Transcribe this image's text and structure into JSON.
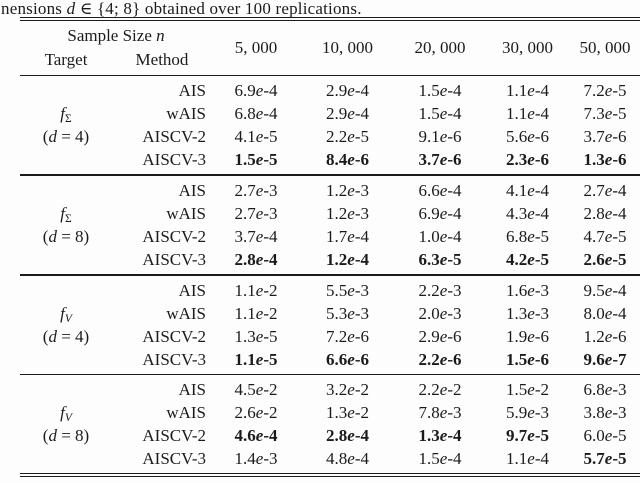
{
  "caption": {
    "parts": [
      {
        "t": "nensions "
      },
      {
        "t": "d",
        "i": true
      },
      {
        "t": " ∈ {4; 8} obtained over 100 replications."
      }
    ]
  },
  "table": {
    "header": {
      "group_title_parts": [
        {
          "t": "Sample Size "
        },
        {
          "t": "n",
          "i": true
        }
      ],
      "target_label": "Target",
      "method_label": "Method",
      "sizes": [
        "5, 000",
        "10, 000",
        "20, 000",
        "30, 000",
        "50, 000"
      ]
    },
    "groups": [
      {
        "target": {
          "symbol": "f",
          "subscript": "Σ",
          "dim_var": "d",
          "dim_value": "4"
        },
        "rows": [
          {
            "method": "AIS",
            "values": [
              "6.9e-4",
              "2.9e-4",
              "1.5e-4",
              "1.1e-4",
              "7.2e-5"
            ],
            "bold": [
              false,
              false,
              false,
              false,
              false
            ]
          },
          {
            "method": "wAIS",
            "values": [
              "6.8e-4",
              "2.9e-4",
              "1.5e-4",
              "1.1e-4",
              "7.3e-5"
            ],
            "bold": [
              false,
              false,
              false,
              false,
              false
            ]
          },
          {
            "method": "AISCV-2",
            "values": [
              "4.1e-5",
              "2.2e-5",
              "9.1e-6",
              "5.6e-6",
              "3.7e-6"
            ],
            "bold": [
              false,
              false,
              false,
              false,
              false
            ]
          },
          {
            "method": "AISCV-3",
            "values": [
              "1.5e-5",
              "8.4e-6",
              "3.7e-6",
              "2.3e-6",
              "1.3e-6"
            ],
            "bold": [
              true,
              true,
              true,
              true,
              true
            ]
          }
        ]
      },
      {
        "target": {
          "symbol": "f",
          "subscript": "Σ",
          "dim_var": "d",
          "dim_value": "8"
        },
        "rows": [
          {
            "method": "AIS",
            "values": [
              "2.7e-3",
              "1.2e-3",
              "6.6e-4",
              "4.1e-4",
              "2.7e-4"
            ],
            "bold": [
              false,
              false,
              false,
              false,
              false
            ]
          },
          {
            "method": "wAIS",
            "values": [
              "2.7e-3",
              "1.2e-3",
              "6.9e-4",
              "4.3e-4",
              "2.8e-4"
            ],
            "bold": [
              false,
              false,
              false,
              false,
              false
            ]
          },
          {
            "method": "AISCV-2",
            "values": [
              "3.7e-4",
              "1.7e-4",
              "1.0e-4",
              "6.8e-5",
              "4.7e-5"
            ],
            "bold": [
              false,
              false,
              false,
              false,
              false
            ]
          },
          {
            "method": "AISCV-3",
            "values": [
              "2.8e-4",
              "1.2e-4",
              "6.3e-5",
              "4.2e-5",
              "2.6e-5"
            ],
            "bold": [
              true,
              true,
              true,
              true,
              true
            ]
          }
        ]
      },
      {
        "target": {
          "symbol": "f",
          "subscript": "V",
          "dim_var": "d",
          "dim_value": "4"
        },
        "rows": [
          {
            "method": "AIS",
            "values": [
              "1.1e-2",
              "5.5e-3",
              "2.2e-3",
              "1.6e-3",
              "9.5e-4"
            ],
            "bold": [
              false,
              false,
              false,
              false,
              false
            ]
          },
          {
            "method": "wAIS",
            "values": [
              "1.1e-2",
              "5.3e-3",
              "2.0e-3",
              "1.3e-3",
              "8.0e-4"
            ],
            "bold": [
              false,
              false,
              false,
              false,
              false
            ]
          },
          {
            "method": "AISCV-2",
            "values": [
              "1.3e-5",
              "7.2e-6",
              "2.9e-6",
              "1.9e-6",
              "1.2e-6"
            ],
            "bold": [
              false,
              false,
              false,
              false,
              false
            ]
          },
          {
            "method": "AISCV-3",
            "values": [
              "1.1e-5",
              "6.6e-6",
              "2.2e-6",
              "1.5e-6",
              "9.6e-7"
            ],
            "bold": [
              true,
              true,
              true,
              true,
              true
            ]
          }
        ]
      },
      {
        "target": {
          "symbol": "f",
          "subscript": "V",
          "dim_var": "d",
          "dim_value": "8"
        },
        "rows": [
          {
            "method": "AIS",
            "values": [
              "4.5e-2",
              "3.2e-2",
              "2.2e-2",
              "1.5e-2",
              "6.8e-3"
            ],
            "bold": [
              false,
              false,
              false,
              false,
              false
            ]
          },
          {
            "method": "wAIS",
            "values": [
              "2.6e-2",
              "1.3e-2",
              "7.8e-3",
              "5.9e-3",
              "3.8e-3"
            ],
            "bold": [
              false,
              false,
              false,
              false,
              false
            ]
          },
          {
            "method": "AISCV-2",
            "values": [
              "4.6e-4",
              "2.8e-4",
              "1.3e-4",
              "9.7e-5",
              "6.0e-5"
            ],
            "bold": [
              true,
              true,
              true,
              true,
              false
            ]
          },
          {
            "method": "AISCV-3",
            "values": [
              "1.4e-3",
              "4.8e-4",
              "1.5e-4",
              "1.1e-4",
              "5.7e-5"
            ],
            "bold": [
              false,
              false,
              false,
              false,
              true
            ]
          }
        ]
      }
    ]
  },
  "colors": {
    "text": "#1b1b1b",
    "rule": "#1b1b1b",
    "background": "#fdfdfd"
  }
}
